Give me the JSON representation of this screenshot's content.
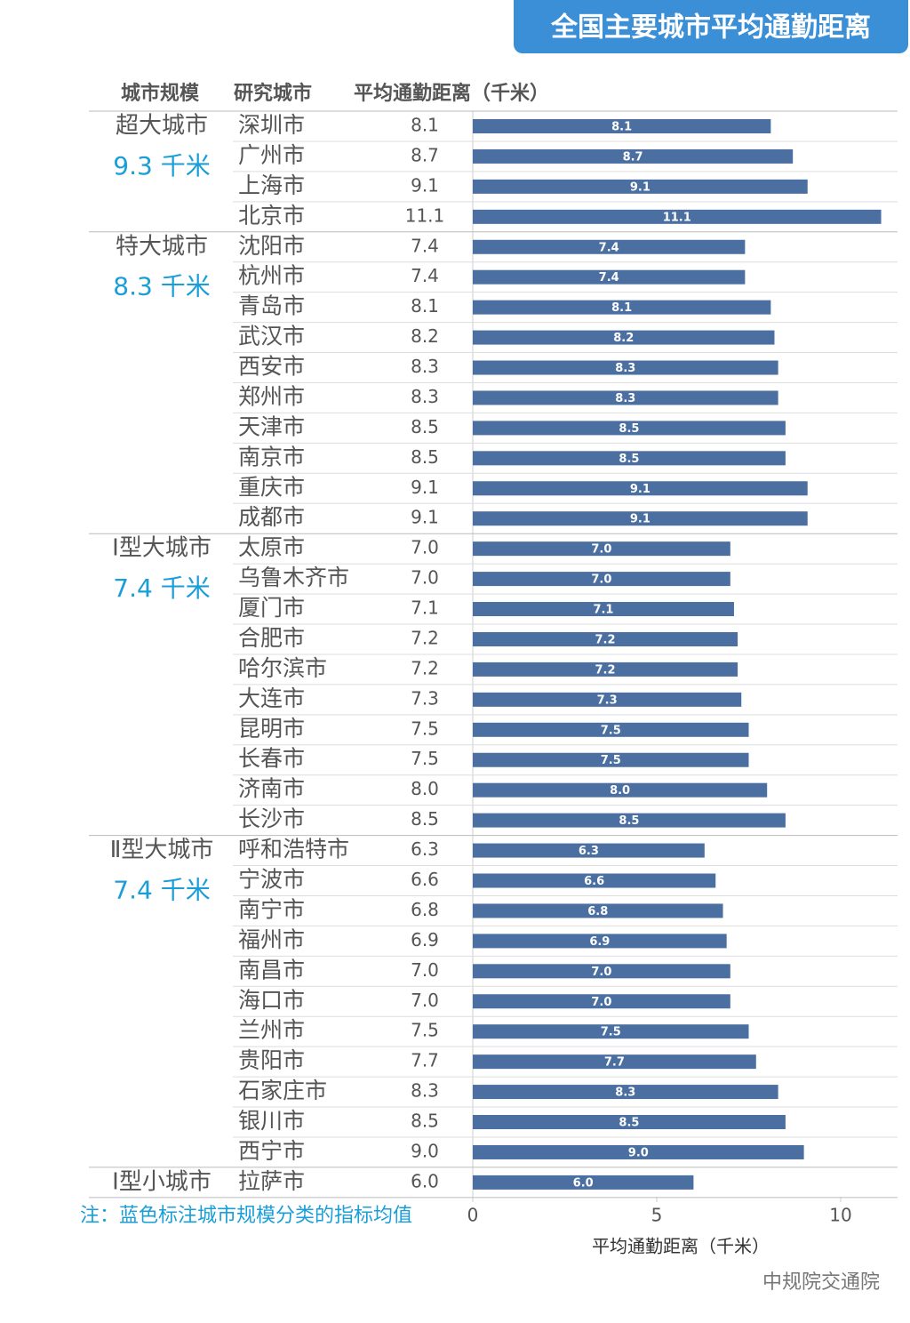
{
  "chart_data": {
    "type": "bar",
    "title": "全国主要城市平均通勤距离",
    "headers": [
      "城市规模",
      "研究城市",
      "平均通勤距离（千米）"
    ],
    "x_label": "平均通勤距离（千米）",
    "note": "注：蓝色标注城市规模分类的指标均值",
    "watermark": "中规院交通院",
    "color": "#4a6fa0",
    "xlim": [
      0,
      11.4
    ],
    "xticks": [
      0,
      5,
      10
    ],
    "groups": [
      {
        "name": "超大城市",
        "average": "9.3 千米",
        "categories": [
          "深圳市",
          "广州市",
          "上海市",
          "北京市"
        ],
        "values": [
          8.1,
          8.7,
          9.1,
          11.1
        ],
        "value_labels": [
          "8.1",
          "8.7",
          "9.1",
          "11.1"
        ]
      },
      {
        "name": "特大城市",
        "average": "8.3 千米",
        "categories": [
          "沈阳市",
          "杭州市",
          "青岛市",
          "武汉市",
          "西安市",
          "郑州市",
          "天津市",
          "南京市",
          "重庆市",
          "成都市"
        ],
        "values": [
          7.4,
          7.4,
          8.1,
          8.2,
          8.3,
          8.3,
          8.5,
          8.5,
          9.1,
          9.1
        ],
        "value_labels": [
          "7.4",
          "7.4",
          "8.1",
          "8.2",
          "8.3",
          "8.3",
          "8.5",
          "8.5",
          "9.1",
          "9.1"
        ]
      },
      {
        "name": "Ⅰ型大城市",
        "average": "7.4 千米",
        "categories": [
          "太原市",
          "乌鲁木齐市",
          "厦门市",
          "合肥市",
          "哈尔滨市",
          "大连市",
          "昆明市",
          "长春市",
          "济南市",
          "长沙市"
        ],
        "values": [
          7.0,
          7.0,
          7.1,
          7.2,
          7.2,
          7.3,
          7.5,
          7.5,
          8.0,
          8.5
        ],
        "value_labels": [
          "7.0",
          "7.0",
          "7.1",
          "7.2",
          "7.2",
          "7.3",
          "7.5",
          "7.5",
          "8.0",
          "8.5"
        ]
      },
      {
        "name": "Ⅱ型大城市",
        "average": "7.4 千米",
        "categories": [
          "呼和浩特市",
          "宁波市",
          "南宁市",
          "福州市",
          "南昌市",
          "海口市",
          "兰州市",
          "贵阳市",
          "石家庄市",
          "银川市",
          "西宁市"
        ],
        "values": [
          6.3,
          6.6,
          6.8,
          6.9,
          7.0,
          7.0,
          7.5,
          7.7,
          8.3,
          8.5,
          9.0
        ],
        "value_labels": [
          "6.3",
          "6.6",
          "6.8",
          "6.9",
          "7.0",
          "7.0",
          "7.5",
          "7.7",
          "8.3",
          "8.5",
          "9.0"
        ]
      },
      {
        "name": "Ⅰ型小城市",
        "categories": [
          "拉萨市"
        ],
        "values": [
          6.0
        ],
        "value_labels": [
          "6.0"
        ]
      }
    ]
  }
}
